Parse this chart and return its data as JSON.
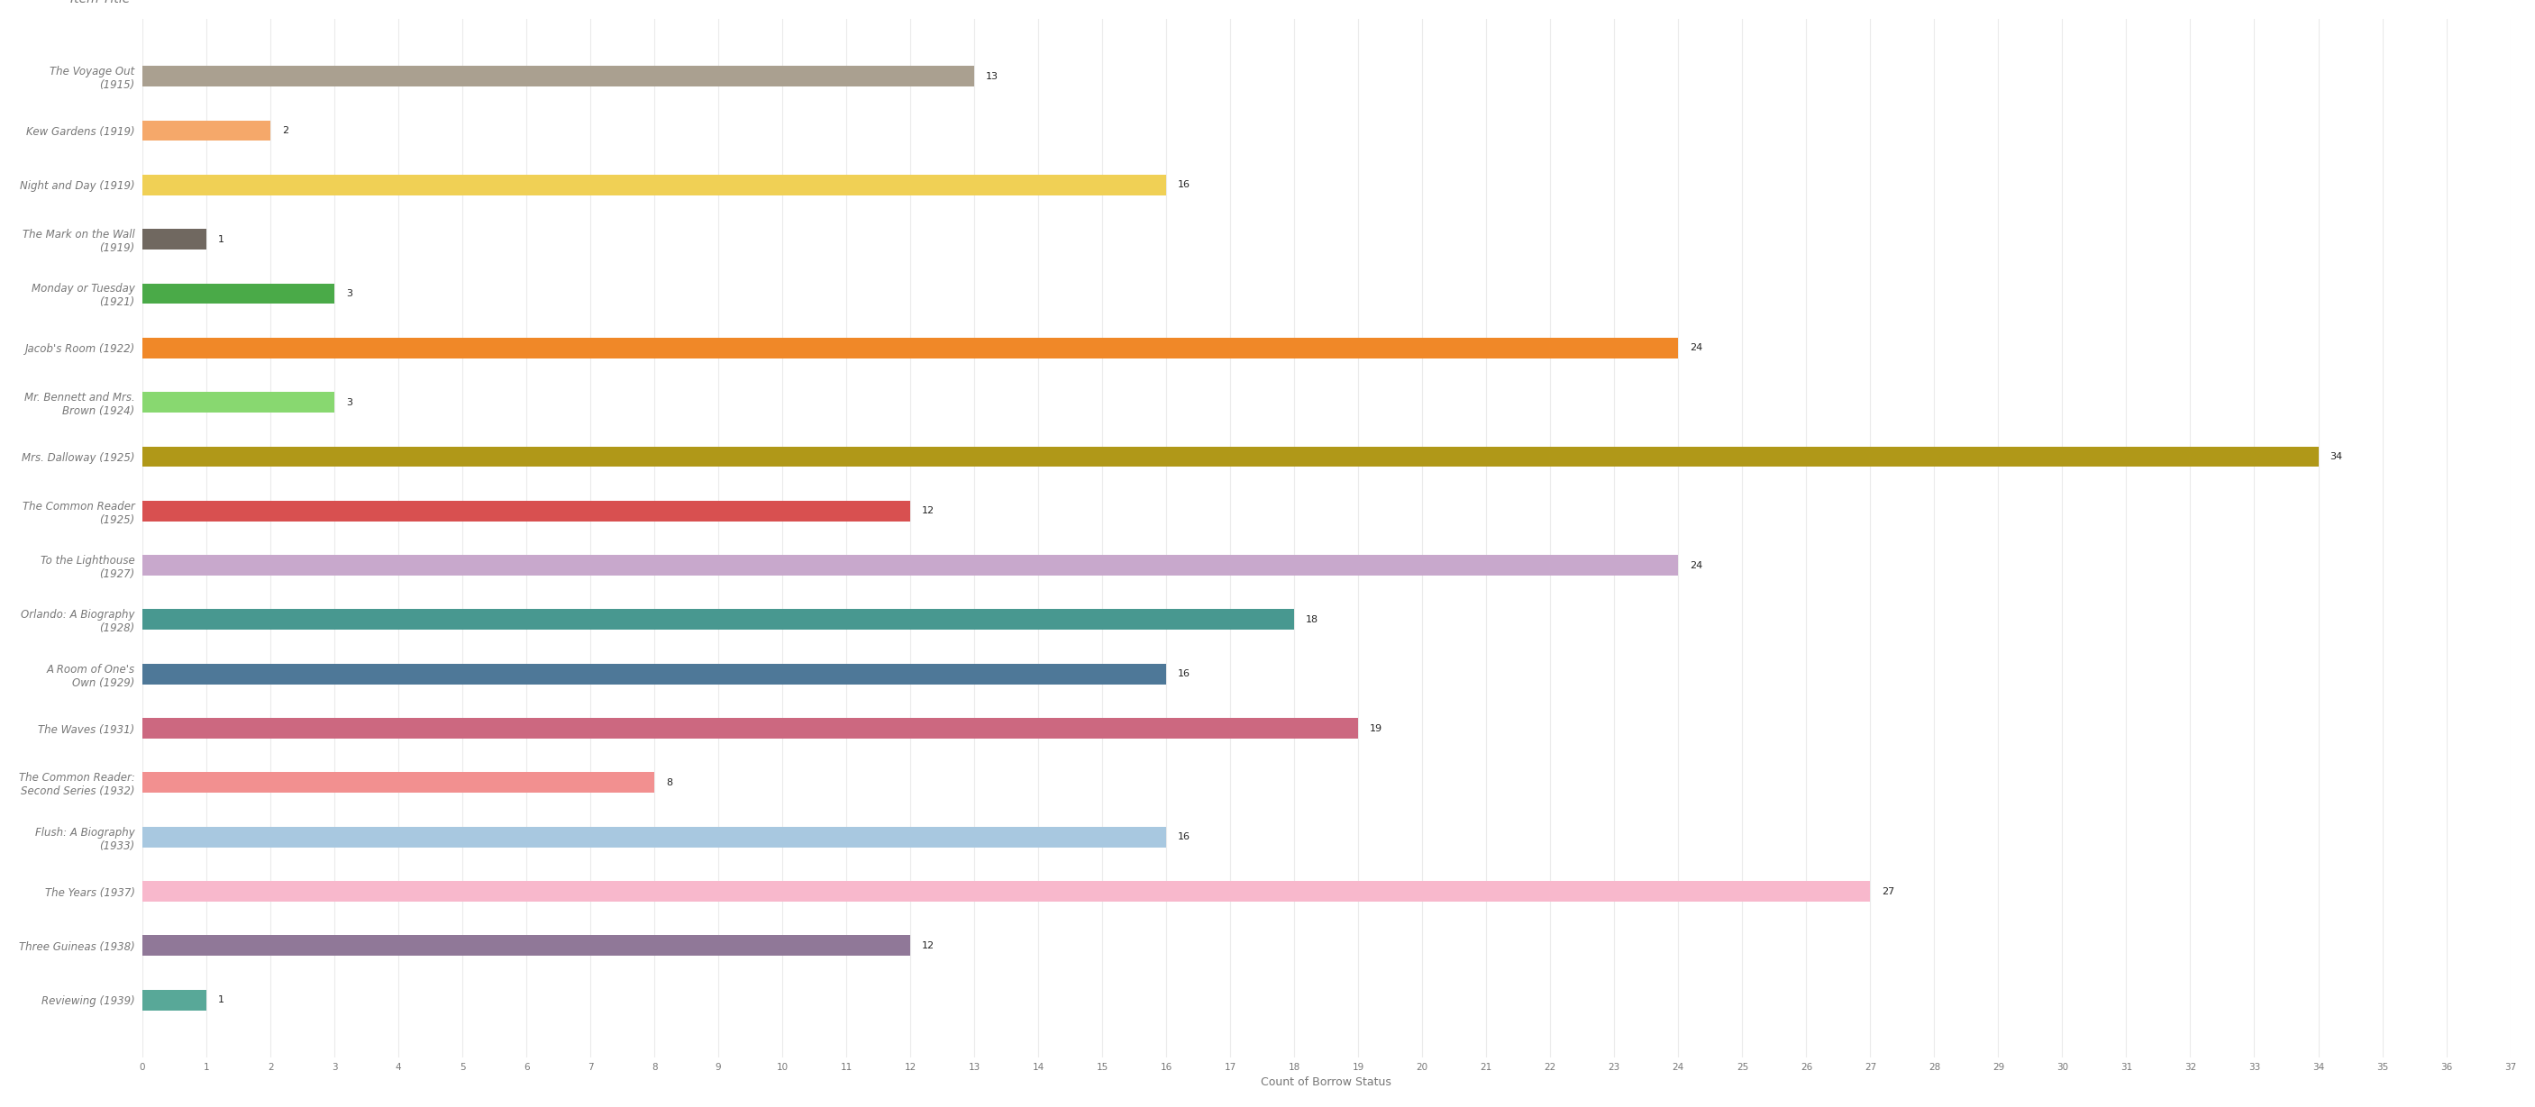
{
  "categories": [
    "The Voyage Out\n(1915)",
    "Kew Gardens (1919)",
    "Night and Day (1919)",
    "The Mark on the Wall\n(1919)",
    "Monday or Tuesday\n(1921)",
    "Jacob's Room (1922)",
    "Mr. Bennett and Mrs.\nBrown (1924)",
    "Mrs. Dalloway (1925)",
    "The Common Reader\n(1925)",
    "To the Lighthouse\n(1927)",
    "Orlando: A Biography\n(1928)",
    "A Room of One's\nOwn (1929)",
    "The Waves (1931)",
    "The Common Reader:\nSecond Series (1932)",
    "Flush: A Biography\n(1933)",
    "The Years (1937)",
    "Three Guineas (1938)",
    "Reviewing (1939)"
  ],
  "values": [
    13,
    2,
    16,
    1,
    3,
    24,
    3,
    34,
    12,
    24,
    18,
    16,
    19,
    8,
    16,
    27,
    12,
    1
  ],
  "colors": [
    "#aaa090",
    "#f5a86a",
    "#f0d055",
    "#706860",
    "#4aaa48",
    "#f08828",
    "#88d870",
    "#b09818",
    "#d85050",
    "#c8a8cc",
    "#489890",
    "#4e7898",
    "#cc6880",
    "#f29090",
    "#a8c8e0",
    "#f8b8cc",
    "#907898",
    "#58a898"
  ],
  "xlabel": "Count of Borrow Status",
  "xlim": [
    0,
    37
  ],
  "xticks": [
    0,
    1,
    2,
    3,
    4,
    5,
    6,
    7,
    8,
    9,
    10,
    11,
    12,
    13,
    14,
    15,
    16,
    17,
    18,
    19,
    20,
    21,
    22,
    23,
    24,
    25,
    26,
    27,
    28,
    29,
    30,
    31,
    32,
    33,
    34,
    35,
    36,
    37
  ],
  "background_color": "#ffffff",
  "grid_color": "#ebebeb",
  "bar_height": 0.38,
  "label_fontsize": 8.5,
  "tick_fontsize": 7.5,
  "header_fontsize": 10,
  "value_fontsize": 8,
  "xlabel_fontsize": 9,
  "label_color": "#777777",
  "tick_color": "#777777",
  "value_color": "#222222"
}
